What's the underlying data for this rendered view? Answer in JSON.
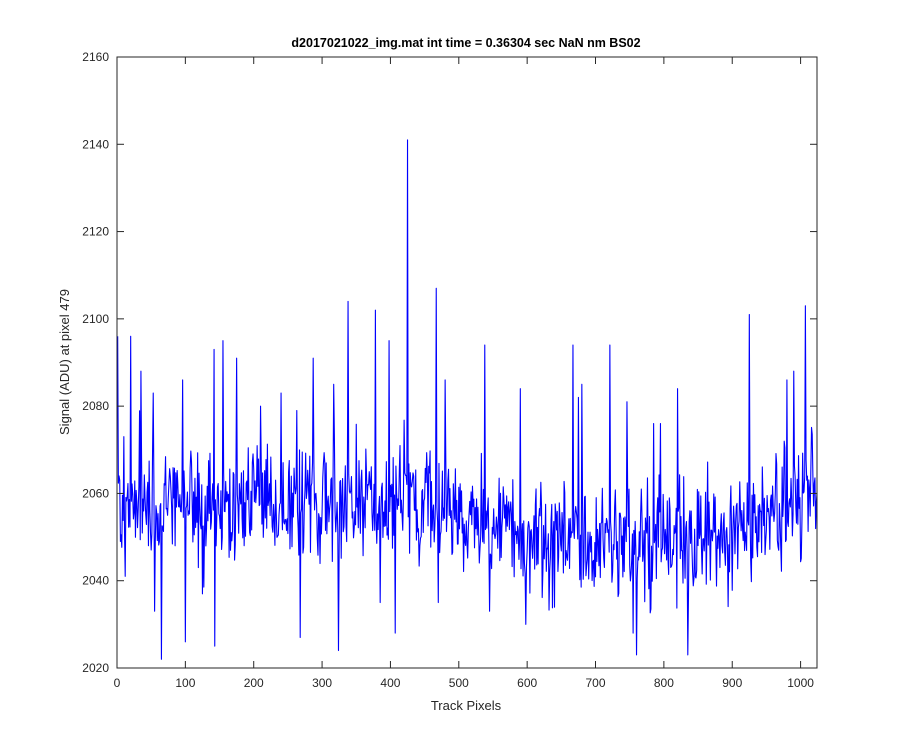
{
  "chart_data": {
    "type": "line",
    "title": "d2017021022_img.mat int time = 0.36304 sec  NaN nm BS02",
    "xlabel": "Track Pixels",
    "ylabel": "Signal (ADU) at pixel 479",
    "xlim": [
      0,
      1024
    ],
    "ylim": [
      2020,
      2160
    ],
    "xticks": [
      0,
      100,
      200,
      300,
      400,
      500,
      600,
      700,
      800,
      900,
      1000
    ],
    "yticks": [
      2020,
      2040,
      2060,
      2080,
      2100,
      2120,
      2140,
      2160
    ],
    "grid": false,
    "legend": "none",
    "colors": {
      "series": "#0000ff",
      "axes": "#262626",
      "background": "#ffffff"
    },
    "series": [
      {
        "line_color": "#0000ff",
        "n_points": 1024,
        "noise_seed": 20170210,
        "baseline": [
          [
            0,
            2058
          ],
          [
            150,
            2058
          ],
          [
            250,
            2056
          ],
          [
            350,
            2059
          ],
          [
            450,
            2058
          ],
          [
            520,
            2054
          ],
          [
            600,
            2051
          ],
          [
            700,
            2049
          ],
          [
            800,
            2048
          ],
          [
            870,
            2050
          ],
          [
            950,
            2055
          ],
          [
            1024,
            2060
          ]
        ],
        "noise_amplitude": 6.5,
        "anchors": [
          [
            1,
            2096
          ],
          [
            3,
            2064
          ],
          [
            10,
            2073
          ],
          [
            12,
            2041
          ],
          [
            20,
            2096
          ],
          [
            35,
            2088
          ],
          [
            53,
            2083
          ],
          [
            55,
            2033
          ],
          [
            65,
            2021
          ],
          [
            96,
            2086
          ],
          [
            100,
            2026
          ],
          [
            125,
            2037
          ],
          [
            142,
            2093
          ],
          [
            143,
            2025
          ],
          [
            155,
            2095
          ],
          [
            175,
            2091
          ],
          [
            210,
            2080
          ],
          [
            240,
            2083
          ],
          [
            263,
            2079
          ],
          [
            268,
            2027
          ],
          [
            287,
            2091
          ],
          [
            317,
            2085
          ],
          [
            324,
            2024
          ],
          [
            338,
            2104
          ],
          [
            378,
            2102
          ],
          [
            385,
            2035
          ],
          [
            398,
            2095
          ],
          [
            407,
            2028
          ],
          [
            425,
            2141
          ],
          [
            467,
            2107
          ],
          [
            470,
            2035
          ],
          [
            480,
            2086
          ],
          [
            538,
            2094
          ],
          [
            545,
            2033
          ],
          [
            590,
            2084
          ],
          [
            598,
            2030
          ],
          [
            667,
            2094
          ],
          [
            675,
            2082
          ],
          [
            680,
            2085
          ],
          [
            688,
            2045
          ],
          [
            721,
            2094
          ],
          [
            746,
            2081
          ],
          [
            755,
            2028
          ],
          [
            760,
            2023
          ],
          [
            785,
            2076
          ],
          [
            795,
            2076
          ],
          [
            820,
            2084
          ],
          [
            835,
            2023
          ],
          [
            925,
            2101
          ],
          [
            980,
            2086
          ],
          [
            990,
            2088
          ],
          [
            1007,
            2103
          ],
          [
            1024,
            2060
          ]
        ]
      }
    ]
  }
}
